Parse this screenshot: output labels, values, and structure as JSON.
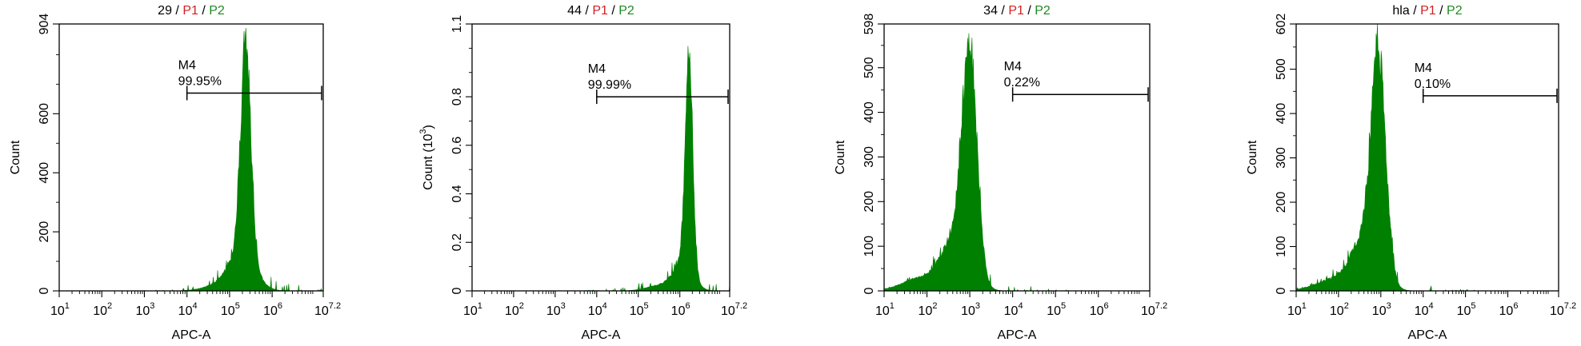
{
  "colors": {
    "histogram": "#008000",
    "p1": "#d42020",
    "p2": "#1f8a1f",
    "text": "#000000"
  },
  "chart_data": [
    {
      "type": "area",
      "title": {
        "sample": "29",
        "sep": " / ",
        "p1": "P1",
        "p2": "P2"
      },
      "xlabel": "APC-A",
      "ylabel": "Count",
      "xscale": "log",
      "xlim": [
        10,
        15848932
      ],
      "x_ticks": [
        {
          "base": "10",
          "exp": "1"
        },
        {
          "base": "10",
          "exp": "2"
        },
        {
          "base": "10",
          "exp": "3"
        },
        {
          "base": "10",
          "exp": "4"
        },
        {
          "base": "10",
          "exp": "5"
        },
        {
          "base": "10",
          "exp": "6"
        },
        {
          "base": "10",
          "exp": "7.2"
        }
      ],
      "ylim": [
        0,
        904
      ],
      "y_ticks": [
        "0",
        "200",
        "400",
        "600",
        "904"
      ],
      "y_tick_values": [
        0,
        200,
        400,
        600,
        904
      ],
      "y_minor_values": [
        100,
        300,
        500,
        700,
        800
      ],
      "grid": false,
      "gate": {
        "name": "M4",
        "percent": "99.95%",
        "x_range": [
          10000,
          15848932
        ],
        "level": 670
      },
      "peaks": [
        {
          "center": 5.38,
          "height": 710,
          "sigma": 0.12
        },
        {
          "center": 5.3,
          "height": 130,
          "sigma": 0.3
        },
        {
          "center": 4.75,
          "height": 18,
          "sigma": 0.35
        }
      ],
      "spikes": [
        {
          "x": 5.34,
          "height": 880
        }
      ]
    },
    {
      "type": "area",
      "title": {
        "sample": "44",
        "sep": " / ",
        "p1": "P1",
        "p2": "P2"
      },
      "xlabel": "APC-A",
      "ylabel": "Count",
      "yunit": {
        "base": "10",
        "exp": "3"
      },
      "xscale": "log",
      "xlim": [
        10,
        15848932
      ],
      "x_ticks": [
        {
          "base": "10",
          "exp": "1"
        },
        {
          "base": "10",
          "exp": "2"
        },
        {
          "base": "10",
          "exp": "3"
        },
        {
          "base": "10",
          "exp": "4"
        },
        {
          "base": "10",
          "exp": "5"
        },
        {
          "base": "10",
          "exp": "6"
        },
        {
          "base": "10",
          "exp": "7.2"
        }
      ],
      "ylim": [
        0,
        1.1
      ],
      "y_ticks": [
        "0",
        "0.2",
        "0.4",
        "0.6",
        "0.8",
        "1.1"
      ],
      "y_tick_values": [
        0,
        0.2,
        0.4,
        0.6,
        0.8,
        1.1
      ],
      "y_minor_values": [
        0.1,
        0.3,
        0.5,
        0.7,
        0.9,
        1.0
      ],
      "grid": false,
      "gate": {
        "name": "M4",
        "percent": "99.99%",
        "x_range": [
          10000,
          15848932
        ],
        "level": 0.8
      },
      "peaks": [
        {
          "center": 6.22,
          "height": 0.86,
          "sigma": 0.09
        },
        {
          "center": 6.1,
          "height": 0.12,
          "sigma": 0.22
        },
        {
          "center": 5.6,
          "height": 0.025,
          "sigma": 0.35
        }
      ],
      "spikes": [
        {
          "x": 6.2,
          "height": 0.97
        }
      ]
    },
    {
      "type": "area",
      "title": {
        "sample": "34",
        "sep": " / ",
        "p1": "P1",
        "p2": "P2"
      },
      "xlabel": "APC-A",
      "ylabel": "Count",
      "xscale": "log",
      "xlim": [
        10,
        15848932
      ],
      "x_ticks": [
        {
          "base": "10",
          "exp": "1"
        },
        {
          "base": "10",
          "exp": "2"
        },
        {
          "base": "10",
          "exp": "3"
        },
        {
          "base": "10",
          "exp": "4"
        },
        {
          "base": "10",
          "exp": "5"
        },
        {
          "base": "10",
          "exp": "6"
        },
        {
          "base": "10",
          "exp": "7.2"
        }
      ],
      "ylim": [
        0,
        598
      ],
      "y_ticks": [
        "0",
        "100",
        "200",
        "300",
        "400",
        "500",
        "598"
      ],
      "y_tick_values": [
        0,
        100,
        200,
        300,
        400,
        500,
        598
      ],
      "y_minor_values": [
        50,
        150,
        250,
        350,
        450,
        550
      ],
      "grid": false,
      "gate": {
        "name": "M4",
        "percent": "0.22%",
        "x_range": [
          10000,
          15848932
        ],
        "level": 440
      },
      "peaks": [
        {
          "center": 3.0,
          "height": 480,
          "sigma": 0.17
        },
        {
          "center": 2.7,
          "height": 120,
          "sigma": 0.32
        },
        {
          "center": 1.9,
          "height": 30,
          "sigma": 0.45
        }
      ],
      "spikes": [
        {
          "x": 2.95,
          "height": 540
        }
      ]
    },
    {
      "type": "area",
      "title": {
        "sample": "hla",
        "sep": " / ",
        "p1": "P1",
        "p2": "P2"
      },
      "xlabel": "APC-A",
      "ylabel": "Count",
      "xscale": "log",
      "xlim": [
        10,
        15848932
      ],
      "x_ticks": [
        {
          "base": "10",
          "exp": "1"
        },
        {
          "base": "10",
          "exp": "2"
        },
        {
          "base": "10",
          "exp": "3"
        },
        {
          "base": "10",
          "exp": "4"
        },
        {
          "base": "10",
          "exp": "5"
        },
        {
          "base": "10",
          "exp": "6"
        },
        {
          "base": "10",
          "exp": "7.2"
        }
      ],
      "ylim": [
        0,
        602
      ],
      "y_ticks": [
        "0",
        "100",
        "200",
        "300",
        "400",
        "500",
        "602"
      ],
      "y_tick_values": [
        0,
        100,
        200,
        300,
        400,
        500,
        602
      ],
      "y_minor_values": [
        50,
        150,
        250,
        350,
        450,
        550
      ],
      "grid": false,
      "gate": {
        "name": "M4",
        "percent": "0.10%",
        "x_range": [
          10000,
          15848932
        ],
        "level": 440
      },
      "peaks": [
        {
          "center": 2.95,
          "height": 470,
          "sigma": 0.17
        },
        {
          "center": 2.65,
          "height": 120,
          "sigma": 0.32
        },
        {
          "center": 1.9,
          "height": 25,
          "sigma": 0.45
        }
      ],
      "spikes": [
        {
          "x": 2.92,
          "height": 540
        }
      ]
    }
  ]
}
